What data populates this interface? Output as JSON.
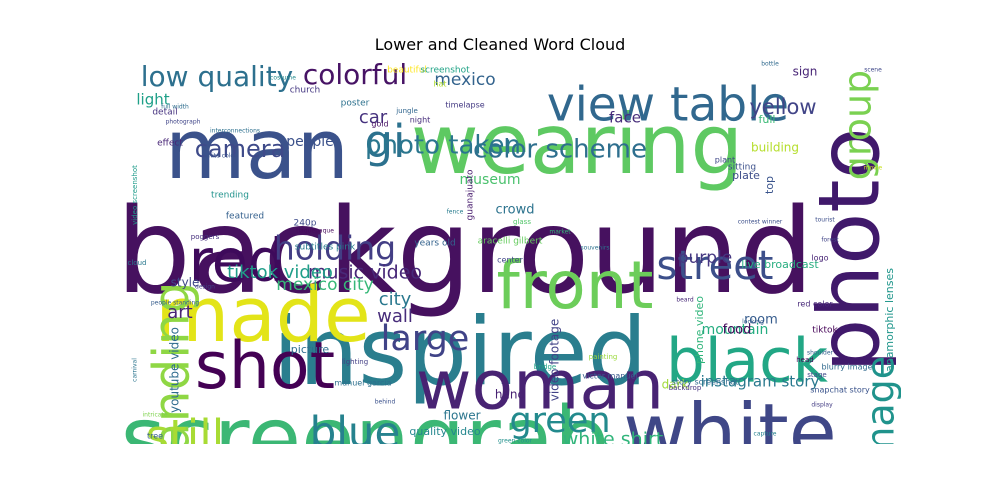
{
  "title": "Lower and Cleaned Word Cloud",
  "chart_data": {
    "type": "wordcloud",
    "title": "Lower and Cleaned Word Cloud",
    "palette": "viridis",
    "background": "#ffffff",
    "words": [
      {
        "text": "background",
        "weight": 1.0,
        "color": "#46115f"
      },
      {
        "text": "inspired",
        "weight": 0.8,
        "color": "#2a7e8e"
      },
      {
        "text": "screengrab",
        "weight": 0.74,
        "color": "#3bb774"
      },
      {
        "text": "photo",
        "weight": 0.72,
        "color": "#40196b"
      },
      {
        "text": "wearing",
        "weight": 0.7,
        "color": "#5ec962"
      },
      {
        "text": "man",
        "weight": 0.7,
        "color": "#3b528b"
      },
      {
        "text": "white",
        "weight": 0.66,
        "color": "#3f4787"
      },
      {
        "text": "made",
        "weight": 0.64,
        "color": "#e3e418"
      },
      {
        "text": "woman",
        "weight": 0.58,
        "color": "#482373"
      },
      {
        "text": "front",
        "weight": 0.56,
        "color": "#6ccd5a"
      },
      {
        "text": "shot",
        "weight": 0.55,
        "color": "#440154"
      },
      {
        "text": "black",
        "weight": 0.52,
        "color": "#22a785"
      },
      {
        "text": "red",
        "weight": 0.5,
        "color": "#3e0a5b"
      },
      {
        "text": "standing",
        "weight": 0.42,
        "color": "#8fd744"
      },
      {
        "text": "view table",
        "weight": 0.4,
        "color": "#31688e"
      },
      {
        "text": "still",
        "weight": 0.38,
        "color": "#a8db34"
      },
      {
        "text": "gi",
        "weight": 0.38,
        "color": "#2c718e"
      },
      {
        "text": "blue",
        "weight": 0.36,
        "color": "#26828e"
      },
      {
        "text": "street",
        "weight": 0.34,
        "color": "#3c4f8a"
      },
      {
        "text": "image",
        "weight": 0.32,
        "color": "#20938c"
      },
      {
        "text": "group",
        "weight": 0.32,
        "color": "#7ad151"
      },
      {
        "text": "large",
        "weight": 0.3,
        "color": "#404387"
      },
      {
        "text": "green",
        "weight": 0.3,
        "color": "#238a8d"
      },
      {
        "text": "holding",
        "weight": 0.28,
        "color": "#433e85"
      },
      {
        "text": "low quality",
        "weight": 0.24,
        "color": "#2d708e"
      },
      {
        "text": "colorful",
        "weight": 0.24,
        "color": "#471365"
      },
      {
        "text": "color scheme",
        "weight": 0.22,
        "color": "#2e6f8e"
      },
      {
        "text": "photo taken",
        "weight": 0.22,
        "color": "#2a768e"
      },
      {
        "text": "camera",
        "weight": 0.2,
        "color": "#3e4a89"
      },
      {
        "text": "yellow",
        "weight": 0.18,
        "color": "#414487"
      },
      {
        "text": "white shirt",
        "weight": 0.16,
        "color": "#31b57b"
      },
      {
        "text": "music video",
        "weight": 0.16,
        "color": "#482878"
      },
      {
        "text": "tiktok video",
        "weight": 0.15,
        "color": "#1f9e89"
      },
      {
        "text": "instagram story",
        "weight": 0.13,
        "color": "#29798e"
      },
      {
        "text": "purple",
        "weight": 0.14,
        "color": "#453781"
      },
      {
        "text": "mexico city",
        "weight": 0.14,
        "color": "#37b878"
      },
      {
        "text": "city",
        "weight": 0.15,
        "color": "#2a788e"
      },
      {
        "text": "wall",
        "weight": 0.15,
        "color": "#472c7a"
      },
      {
        "text": "art",
        "weight": 0.15,
        "color": "#482475"
      },
      {
        "text": "car",
        "weight": 0.15,
        "color": "#46327e"
      },
      {
        "text": "mexico",
        "weight": 0.14,
        "color": "#33638d"
      },
      {
        "text": "light",
        "weight": 0.13,
        "color": "#1fa088"
      },
      {
        "text": "face",
        "weight": 0.13,
        "color": "#472d7b"
      },
      {
        "text": "people",
        "weight": 0.12,
        "color": "#3b518b"
      },
      {
        "text": "museum",
        "weight": 0.12,
        "color": "#4ac16d"
      },
      {
        "text": "crowd",
        "weight": 0.11,
        "color": "#2c738e"
      },
      {
        "text": "mountain",
        "weight": 0.12,
        "color": "#26ad81"
      },
      {
        "text": "food",
        "weight": 0.11,
        "color": "#46085c"
      },
      {
        "text": "room",
        "weight": 0.11,
        "color": "#365c8d"
      },
      {
        "text": "hand",
        "weight": 0.1,
        "color": "#482173"
      },
      {
        "text": "dark",
        "weight": 0.1,
        "color": "#a0da39"
      },
      {
        "text": "flower",
        "weight": 0.1,
        "color": "#2b758e"
      },
      {
        "text": "quality video",
        "weight": 0.09,
        "color": "#24878e"
      },
      {
        "text": "youtube video",
        "weight": 0.1,
        "color": "#2f6c8e"
      },
      {
        "text": "style",
        "weight": 0.1,
        "color": "#3f4889"
      },
      {
        "text": "picture",
        "weight": 0.09,
        "color": "#2e6e8e"
      },
      {
        "text": "video footage",
        "weight": 0.1,
        "color": "#414287"
      },
      {
        "text": "anamorphic lenses",
        "weight": 0.09,
        "color": "#1f968b"
      },
      {
        "text": "live broadcast",
        "weight": 0.09,
        "color": "#28ae80"
      },
      {
        "text": "phone video",
        "weight": 0.09,
        "color": "#31b57b"
      },
      {
        "text": "tiktok",
        "weight": 0.08,
        "color": "#440256"
      },
      {
        "text": "plate",
        "weight": 0.09,
        "color": "#3d4d8a"
      },
      {
        "text": "building",
        "weight": 0.1,
        "color": "#b5de2b"
      },
      {
        "text": "sign",
        "weight": 0.1,
        "color": "#482576"
      },
      {
        "text": "full",
        "weight": 0.09,
        "color": "#3aba76"
      },
      {
        "text": "top",
        "weight": 0.09,
        "color": "#3a548c"
      },
      {
        "text": "sitting",
        "weight": 0.08,
        "color": "#3c508b"
      },
      {
        "text": "trending",
        "weight": 0.08,
        "color": "#20928c"
      },
      {
        "text": "featured",
        "weight": 0.08,
        "color": "#34608d"
      },
      {
        "text": "subtitles pink",
        "weight": 0.08,
        "color": "#297b8e"
      },
      {
        "text": "240p",
        "weight": 0.08,
        "color": "#3e4c8a"
      },
      {
        "text": "guanajuato",
        "weight": 0.08,
        "color": "#481c6e"
      },
      {
        "text": "poster",
        "weight": 0.08,
        "color": "#2d718e"
      },
      {
        "text": "church",
        "weight": 0.08,
        "color": "#453882"
      },
      {
        "text": "beautiful",
        "weight": 0.08,
        "color": "#fde725"
      },
      {
        "text": "screenshot",
        "weight": 0.08,
        "color": "#20a386"
      },
      {
        "text": "detail",
        "weight": 0.08,
        "color": "#46337f"
      },
      {
        "text": "effect",
        "weight": 0.08,
        "color": "#482677"
      },
      {
        "text": "aracelli gilbert",
        "weight": 0.08,
        "color": "#65cb5e"
      },
      {
        "text": "years old",
        "weight": 0.08,
        "color": "#33628d"
      },
      {
        "text": "center",
        "weight": 0.07,
        "color": "#404688"
      },
      {
        "text": "manuel garcia",
        "weight": 0.07,
        "color": "#2d708e"
      },
      {
        "text": "story screenshot",
        "weight": 0.07,
        "color": "#2f6b8e"
      },
      {
        "text": "snapchat story",
        "weight": 0.07,
        "color": "#3a538b"
      },
      {
        "text": "victor manuel",
        "weight": 0.07,
        "color": "#38588c"
      },
      {
        "text": "red color",
        "weight": 0.07,
        "color": "#482979"
      },
      {
        "text": "blurry image",
        "weight": 0.07,
        "color": "#306a8e"
      },
      {
        "text": "tree",
        "weight": 0.07,
        "color": "#355f8d"
      },
      {
        "text": "logo",
        "weight": 0.07,
        "color": "#482576"
      },
      {
        "text": "plant",
        "weight": 0.07,
        "color": "#3f4788"
      },
      {
        "text": "gold",
        "weight": 0.07,
        "color": "#471164"
      },
      {
        "text": "night",
        "weight": 0.07,
        "color": "#472e7c"
      },
      {
        "text": "timelapse",
        "weight": 0.07,
        "color": "#443a83"
      },
      {
        "text": "hat",
        "weight": 0.07,
        "color": "#b0dd2f"
      },
      {
        "text": "jungle",
        "weight": 0.06,
        "color": "#31668e"
      },
      {
        "text": "backdrop",
        "weight": 0.06,
        "color": "#463480"
      },
      {
        "text": "head",
        "weight": 0.06,
        "color": "#440154"
      },
      {
        "text": "stage",
        "weight": 0.06,
        "color": "#3e4989"
      },
      {
        "text": "painting",
        "weight": 0.06,
        "color": "#9bd93c"
      },
      {
        "text": "bridge",
        "weight": 0.06,
        "color": "#20a486"
      },
      {
        "text": "dancing",
        "weight": 0.06,
        "color": "#481467"
      },
      {
        "text": "glass",
        "weight": 0.06,
        "color": "#52c569"
      },
      {
        "text": "lighting",
        "weight": 0.06,
        "color": "#433e85"
      },
      {
        "text": "poggers",
        "weight": 0.06,
        "color": "#46307e"
      },
      {
        "text": "cloud",
        "weight": 0.06,
        "color": "#2a788e"
      },
      {
        "text": "design",
        "weight": 0.05,
        "color": "#414487"
      },
      {
        "text": "interconnections",
        "weight": 0.05,
        "color": "#2d708e"
      },
      {
        "text": "video screenshot",
        "weight": 0.06,
        "color": "#1e9b8a"
      },
      {
        "text": "white color",
        "weight": 0.05,
        "color": "#3a548c"
      },
      {
        "text": "people standing",
        "weight": 0.05,
        "color": "#365d8d"
      },
      {
        "text": "tlaquepaque",
        "weight": 0.05,
        "color": "#46085c"
      },
      {
        "text": "carnival",
        "weight": 0.05,
        "color": "#2b748e"
      },
      {
        "text": "intricate",
        "weight": 0.05,
        "color": "#7fd34e"
      },
      {
        "text": "green color",
        "weight": 0.05,
        "color": "#21918c"
      },
      {
        "text": "behind",
        "weight": 0.05,
        "color": "#3b518b"
      },
      {
        "text": "market",
        "weight": 0.05,
        "color": "#35b779"
      },
      {
        "text": "souvenirs",
        "weight": 0.05,
        "color": "#2c728e"
      },
      {
        "text": "tourist",
        "weight": 0.05,
        "color": "#3d4e8a"
      },
      {
        "text": "photograph",
        "weight": 0.05,
        "color": "#404588"
      },
      {
        "text": "full width",
        "weight": 0.05,
        "color": "#2e6d8e"
      },
      {
        "text": "costume",
        "weight": 0.05,
        "color": "#238a8d"
      },
      {
        "text": "bottle",
        "weight": 0.05,
        "color": "#306a8e"
      },
      {
        "text": "scene",
        "weight": 0.05,
        "color": "#3f4889"
      },
      {
        "text": "movie",
        "weight": 0.05,
        "color": "#c8e020"
      },
      {
        "text": "fence",
        "weight": 0.05,
        "color": "#287c8e"
      },
      {
        "text": "looking",
        "weight": 0.05,
        "color": "#355e8d"
      },
      {
        "text": "contest winner",
        "weight": 0.05,
        "color": "#3c4f8a"
      },
      {
        "text": "forest",
        "weight": 0.05,
        "color": "#414487"
      },
      {
        "text": "shoulder",
        "weight": 0.05,
        "color": "#34618d"
      },
      {
        "text": "beard",
        "weight": 0.05,
        "color": "#482878"
      },
      {
        "text": "display",
        "weight": 0.05,
        "color": "#433d84"
      },
      {
        "text": "capture",
        "weight": 0.05,
        "color": "#26818e"
      }
    ]
  }
}
